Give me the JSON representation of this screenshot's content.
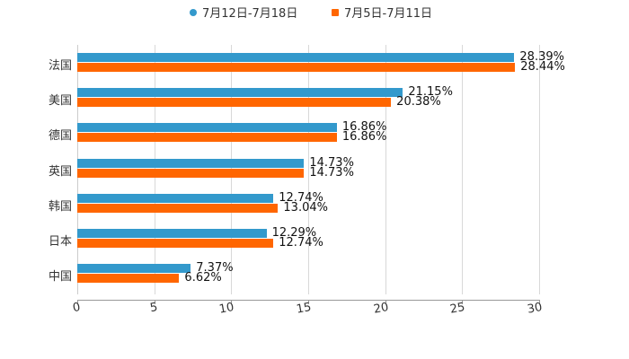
{
  "legend": [
    {
      "label": "7月12日-7月18日",
      "color": "#3399cc",
      "marker": "circle"
    },
    {
      "label": "7月5日-7月11日",
      "color": "#ff6600",
      "marker": "square"
    }
  ],
  "chart_data": {
    "type": "bar",
    "orientation": "horizontal",
    "title": "",
    "xlabel": "",
    "ylabel": "",
    "categories": [
      "法国",
      "美国",
      "德国",
      "英国",
      "韩国",
      "日本",
      "中国"
    ],
    "series": [
      {
        "name": "7月12日-7月18日",
        "color": "#3399cc",
        "values": [
          28.39,
          21.15,
          16.86,
          14.73,
          12.74,
          12.29,
          7.37
        ],
        "labels": [
          "28.39%",
          "21.15%",
          "16.86%",
          "14.73%",
          "12.74%",
          "12.29%",
          "7.37%"
        ]
      },
      {
        "name": "7月5日-7月11日",
        "color": "#ff6600",
        "values": [
          28.44,
          20.38,
          16.86,
          14.73,
          13.04,
          12.74,
          6.62
        ],
        "labels": [
          "28.44%",
          "20.38%",
          "16.86%",
          "14.73%",
          "13.04%",
          "12.74%",
          "6.62%"
        ]
      }
    ],
    "xlim": [
      0,
      30
    ],
    "xticks": [
      "0",
      "5",
      "10",
      "15",
      "20",
      "25",
      "30"
    ],
    "grid": true,
    "legend_position": "top"
  }
}
